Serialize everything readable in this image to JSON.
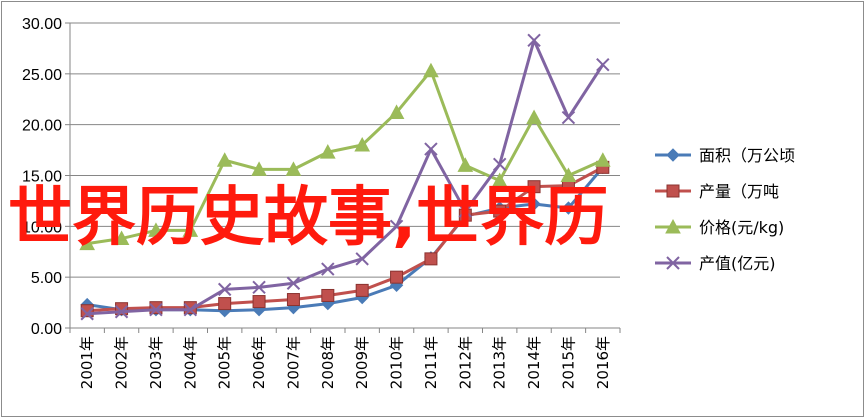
{
  "overlay_text": "世界历史故事,世界历",
  "colors": {
    "area": "#4a7bb7",
    "production": "#c0504d",
    "price": "#9bbb59",
    "output": "#8064a2",
    "overlay": "#ff1a0d",
    "axis": "#868686",
    "grid": "#868686"
  },
  "chart_data": {
    "type": "line",
    "categories": [
      "2001年",
      "2002年",
      "2003年",
      "2004年",
      "2005年",
      "2006年",
      "2007年",
      "2008年",
      "2009年",
      "2010年",
      "2011年",
      "2012年",
      "2013年",
      "2014年",
      "2015年",
      "2016年"
    ],
    "ylim": [
      0,
      30
    ],
    "yticks": [
      "0.00",
      "5.00",
      "10.00",
      "15.00",
      "20.00",
      "25.00",
      "30.00"
    ],
    "grid": true,
    "legend_position": "right",
    "series": [
      {
        "name": "面积（万公顷",
        "marker": "diamond",
        "color": "#4a7bb7",
        "values": [
          2.3,
          1.8,
          1.8,
          1.8,
          1.7,
          1.8,
          2.0,
          2.4,
          3.0,
          4.2,
          6.9,
          11.0,
          11.8,
          12.2,
          11.8,
          15.8
        ]
      },
      {
        "name": "产量（万吨",
        "marker": "square",
        "color": "#c0504d",
        "values": [
          1.7,
          1.9,
          2.0,
          2.0,
          2.4,
          2.6,
          2.8,
          3.2,
          3.7,
          5.0,
          6.8,
          11.1,
          11.5,
          13.9,
          14.0,
          15.8
        ]
      },
      {
        "name": "价格(元/kg)",
        "marker": "triangle",
        "color": "#9bbb59",
        "values": [
          8.3,
          8.8,
          9.6,
          9.6,
          16.5,
          15.6,
          15.6,
          17.3,
          18.0,
          21.2,
          25.3,
          16.0,
          14.5,
          20.7,
          15.0,
          16.5
        ]
      },
      {
        "name": "产值(亿元)",
        "marker": "x",
        "color": "#8064a2",
        "values": [
          1.4,
          1.6,
          1.8,
          1.8,
          3.8,
          4.0,
          4.4,
          5.8,
          6.8,
          10.0,
          17.6,
          11.5,
          16.1,
          28.3,
          20.7,
          25.9
        ]
      }
    ]
  }
}
